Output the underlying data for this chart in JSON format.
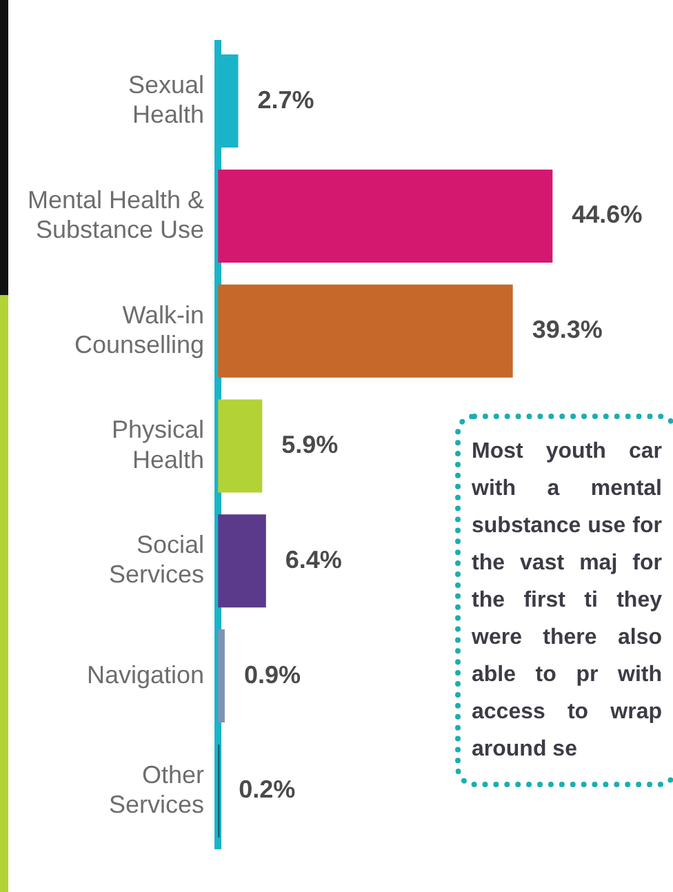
{
  "chart_data": {
    "type": "bar",
    "orientation": "horizontal",
    "categories": [
      "Sexual Health",
      "Mental Health & Substance Use",
      "Walk-in Counselling",
      "Physical Health",
      "Social Services",
      "Navigation",
      "Other Services"
    ],
    "values": [
      2.7,
      44.6,
      39.3,
      5.9,
      6.4,
      0.9,
      0.2
    ],
    "colors": [
      "#1ab4c8",
      "#d4186f",
      "#c5682a",
      "#b2d235",
      "#5b3a8c",
      "#7f93b5",
      "#1d4e5a"
    ],
    "value_labels": [
      "2.7%",
      "44.6%",
      "39.3%",
      "5.9%",
      "6.4%",
      "0.9%",
      "0.2%"
    ],
    "legend": false,
    "annotations": [
      "Most youth car with a mental substance use for the vast maj for the first ti they were there also able to pr with access to wrap around se"
    ]
  }
}
